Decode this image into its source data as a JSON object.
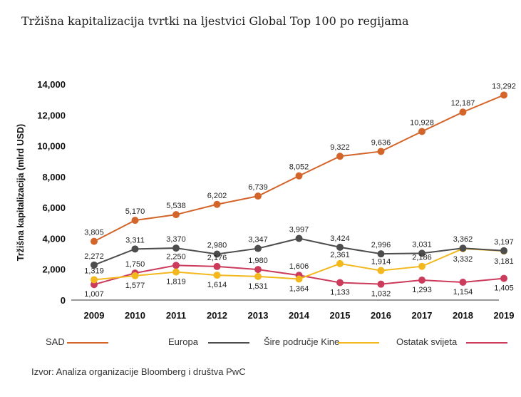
{
  "chart_data": {
    "type": "line",
    "title": "Tržišna kapitalizacija tvrtki na ljestvici Global Top 100 po regijama",
    "ylabel": "Tržišna kapitalizacija (mlrd USD)",
    "xlabel": "",
    "ylim": [
      0,
      14000
    ],
    "yticks": [
      0,
      2000,
      4000,
      6000,
      8000,
      10000,
      12000,
      14000
    ],
    "ytick_labels": [
      "0",
      "2,000",
      "4,000",
      "6,000",
      "8,000",
      "10,000",
      "12,000",
      "14,000"
    ],
    "categories": [
      "2009",
      "2010",
      "2011",
      "2012",
      "2013",
      "2014",
      "2015",
      "2016",
      "2017",
      "2018",
      "2019"
    ],
    "grid": false,
    "legend_position": "bottom",
    "series": [
      {
        "name": "SAD",
        "color": "#d4652a",
        "values": [
          3805,
          5170,
          5538,
          6202,
          6739,
          8052,
          9322,
          9636,
          10928,
          12187,
          13292
        ],
        "labels": [
          "3,805",
          "5,170",
          "5,538",
          "6,202",
          "6,739",
          "8,052",
          "9,322",
          "9,636",
          "10,928",
          "12,187",
          "13,292"
        ]
      },
      {
        "name": "Europa",
        "color": "#4d4d4d",
        "values": [
          2272,
          3311,
          3370,
          2980,
          3347,
          3997,
          3424,
          2996,
          3031,
          3362,
          3197
        ],
        "labels": [
          "2,272",
          "3,311",
          "3,370",
          "2,980",
          "3,347",
          "3,997",
          "3,424",
          "2,996",
          "3,031",
          "3,362",
          "3,197"
        ]
      },
      {
        "name": "Šire područje Kine",
        "color": "#f2b81e",
        "values": [
          1319,
          1577,
          1819,
          1614,
          1531,
          1364,
          2361,
          1914,
          2186,
          3332,
          3181
        ],
        "labels": [
          "1,319",
          "1,577",
          "1,819",
          "1,614",
          "1,531",
          "1,364",
          "2,361",
          "1,914",
          "2,186",
          "3,332",
          "3,181"
        ]
      },
      {
        "name": "Ostatak svijeta",
        "color": "#cc3b5c",
        "values": [
          1007,
          1750,
          2250,
          2176,
          1980,
          1606,
          1133,
          1032,
          1293,
          1154,
          1405
        ],
        "labels": [
          "1,007",
          "1,750",
          "2,250",
          "2,176",
          "1,980",
          "1,606",
          "1,133",
          "1,032",
          "1,293",
          "1,154",
          "1,405"
        ]
      }
    ]
  },
  "source": "Izvor: Analiza organizacije Bloomberg i društva PwC"
}
